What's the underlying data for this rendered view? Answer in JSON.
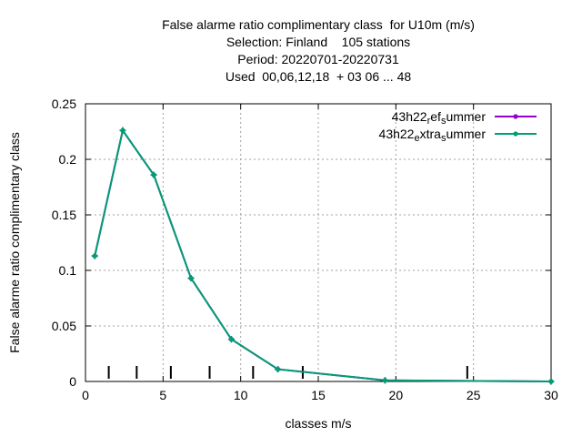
{
  "chart_data": {
    "type": "line",
    "title_lines": [
      "False alarme ratio complimentary class  for U10m (m/s)",
      "Selection: Finland    105 stations",
      "Period: 20220701-20220731",
      "Used  00,06,12,18  + 03 06 ... 48"
    ],
    "xlabel": "classes m/s",
    "ylabel": "False alarme ratio complimentary class",
    "xlim": [
      0,
      30
    ],
    "ylim": [
      0,
      0.25
    ],
    "x_ticks": [
      0,
      5,
      10,
      15,
      20,
      25,
      30
    ],
    "x_tick_labels": [
      "0",
      "5",
      "10",
      "15",
      "20",
      "25",
      "30"
    ],
    "y_ticks": [
      0,
      0.05,
      0.1,
      0.15,
      0.2,
      0.25
    ],
    "y_tick_labels": [
      "0",
      "0.05",
      "0.1",
      "0.15",
      "0.2",
      "0.25"
    ],
    "grid": true,
    "legend_position": "top-right",
    "class_markers_x": [
      1.5,
      3.3,
      5.5,
      8.0,
      10.8,
      14.0,
      24.6
    ],
    "series": [
      {
        "legend_parts": [
          {
            "text": "43h22",
            "sub": false
          },
          {
            "text": "r",
            "sub": true
          },
          {
            "text": "ef",
            "sub": false
          },
          {
            "text": "s",
            "sub": true
          },
          {
            "text": "ummer",
            "sub": false
          }
        ],
        "color": "#9400d3",
        "x": [
          0.6,
          2.4,
          4.4,
          6.8,
          9.4,
          12.4,
          19.3,
          30.0
        ],
        "y": [
          0.113,
          0.226,
          0.186,
          0.093,
          0.038,
          0.011,
          0.001,
          0.0
        ]
      },
      {
        "legend_parts": [
          {
            "text": "43h22",
            "sub": false
          },
          {
            "text": "e",
            "sub": true
          },
          {
            "text": "xtra",
            "sub": false
          },
          {
            "text": "s",
            "sub": true
          },
          {
            "text": "ummer",
            "sub": false
          }
        ],
        "color": "#009e73",
        "x": [
          0.6,
          2.4,
          4.4,
          6.8,
          9.4,
          12.4,
          19.3,
          30.0
        ],
        "y": [
          0.113,
          0.226,
          0.186,
          0.093,
          0.038,
          0.011,
          0.001,
          0.0
        ]
      }
    ]
  }
}
